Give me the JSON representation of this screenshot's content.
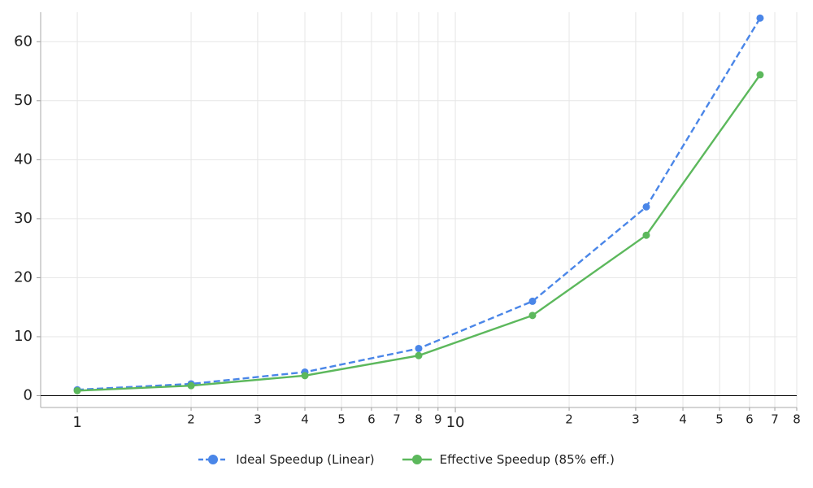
{
  "chart_data": {
    "type": "line",
    "x": [
      1,
      2,
      4,
      8,
      16,
      32,
      64
    ],
    "series": [
      {
        "name": "Ideal Speedup (Linear)",
        "color": "#4a86e8",
        "linestyle": "dashed",
        "values": [
          1,
          2,
          4,
          8,
          16,
          32,
          64
        ]
      },
      {
        "name": "Effective Speedup (85% eff.)",
        "color": "#5cb85c",
        "linestyle": "solid",
        "values": [
          0.85,
          1.7,
          3.4,
          6.8,
          13.6,
          27.2,
          54.4
        ]
      }
    ],
    "xscale": "log",
    "xlim": [
      0.8,
      80
    ],
    "xticks": [
      1,
      10
    ],
    "xminorticks": [
      2,
      3,
      4,
      5,
      6,
      7,
      8,
      9,
      {
        "value": 20,
        "label": "2"
      },
      {
        "value": 30,
        "label": "3"
      },
      {
        "value": 40,
        "label": "4"
      },
      {
        "value": 50,
        "label": "5"
      },
      {
        "value": 60,
        "label": "6"
      },
      {
        "value": 70,
        "label": "7"
      },
      {
        "value": 80,
        "label": "8"
      }
    ],
    "ylim": [
      -2,
      65
    ],
    "yticks": [
      0,
      10,
      20,
      30,
      40,
      50,
      60
    ],
    "grid": true,
    "legend": "bottom"
  }
}
